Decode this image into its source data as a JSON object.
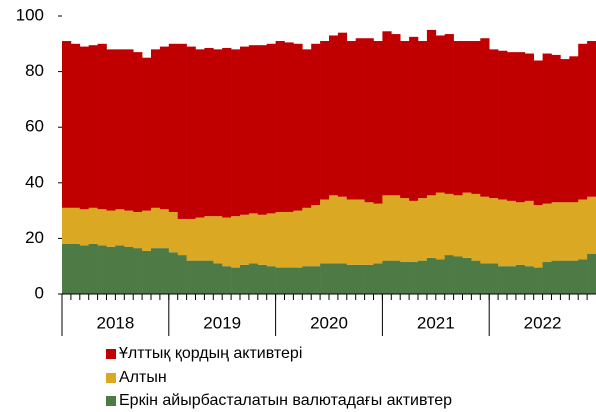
{
  "chart_data": {
    "type": "stacked_bar",
    "categories": [
      null,
      null,
      null,
      null,
      null,
      null,
      null,
      null,
      null,
      null,
      null,
      null,
      null,
      null,
      null,
      null,
      null,
      null,
      null,
      null,
      null,
      null,
      null,
      null,
      null,
      null,
      null,
      null,
      null,
      null,
      null,
      null,
      null,
      null,
      null,
      null,
      null,
      null,
      null,
      null,
      null,
      null,
      null,
      null,
      null,
      null,
      null,
      null,
      null,
      null,
      null,
      null,
      null,
      null,
      null,
      null,
      null,
      null,
      null,
      null
    ],
    "x_groups": [
      "2018",
      "2019",
      "2020",
      "2021",
      "2022"
    ],
    "series": [
      {
        "name": "Еркін айырбасталатын валютадағы активтер",
        "color": "#4e7a46",
        "values": [
          18,
          18,
          17.5,
          18,
          17.5,
          17,
          17.5,
          17,
          16.5,
          15.5,
          16.5,
          16.5,
          15,
          14,
          12,
          12,
          12,
          11,
          10,
          9.5,
          10.5,
          11,
          10.5,
          10,
          9.5,
          9.5,
          9.5,
          10,
          10,
          11,
          11,
          11,
          10.5,
          10.5,
          10.5,
          11,
          12,
          12,
          11.5,
          11.5,
          12,
          13,
          12.5,
          14,
          13.5,
          13,
          12,
          11,
          11,
          10,
          10,
          10.5,
          10,
          9.5,
          11.5,
          12,
          12,
          12,
          12.5,
          14.5
        ]
      },
      {
        "name": "Алтын",
        "color": "#daa822",
        "values": [
          13,
          13,
          13,
          13,
          13,
          13,
          13,
          13,
          13,
          14.5,
          14.5,
          14,
          14.5,
          13,
          15,
          15.5,
          16,
          17,
          17.5,
          18.5,
          18,
          18,
          18,
          19,
          20,
          20,
          20.5,
          21,
          22,
          23,
          24.5,
          24,
          23.5,
          23.5,
          22.5,
          21.5,
          23.5,
          23.5,
          23,
          22,
          22.5,
          22.5,
          24,
          22,
          22,
          23.5,
          24,
          24,
          23.5,
          24,
          23.5,
          22.5,
          23.5,
          22.5,
          21,
          21,
          21,
          21,
          21.5,
          20.5
        ]
      },
      {
        "name": "Ұлттық қордың активтері",
        "color": "#c00000",
        "values": [
          60,
          59,
          58.5,
          58.5,
          59.5,
          58,
          57.5,
          58,
          57.5,
          55,
          57,
          58.5,
          60.5,
          63,
          62,
          60.5,
          60.5,
          60,
          61,
          60,
          60.5,
          60.5,
          61,
          61,
          61.5,
          61,
          60,
          57,
          58,
          57,
          57.5,
          59,
          57,
          58,
          59,
          58.5,
          59,
          58,
          56.5,
          59,
          56.5,
          59.5,
          56.5,
          57.5,
          55.5,
          54.5,
          55,
          57,
          53.5,
          53.5,
          53.5,
          54,
          53,
          52,
          54,
          53,
          51.5,
          52.5,
          56,
          56
        ]
      }
    ],
    "ylim": [
      0,
      100
    ],
    "yticks": [
      0,
      20,
      40,
      60,
      80,
      100
    ],
    "grid": false
  }
}
